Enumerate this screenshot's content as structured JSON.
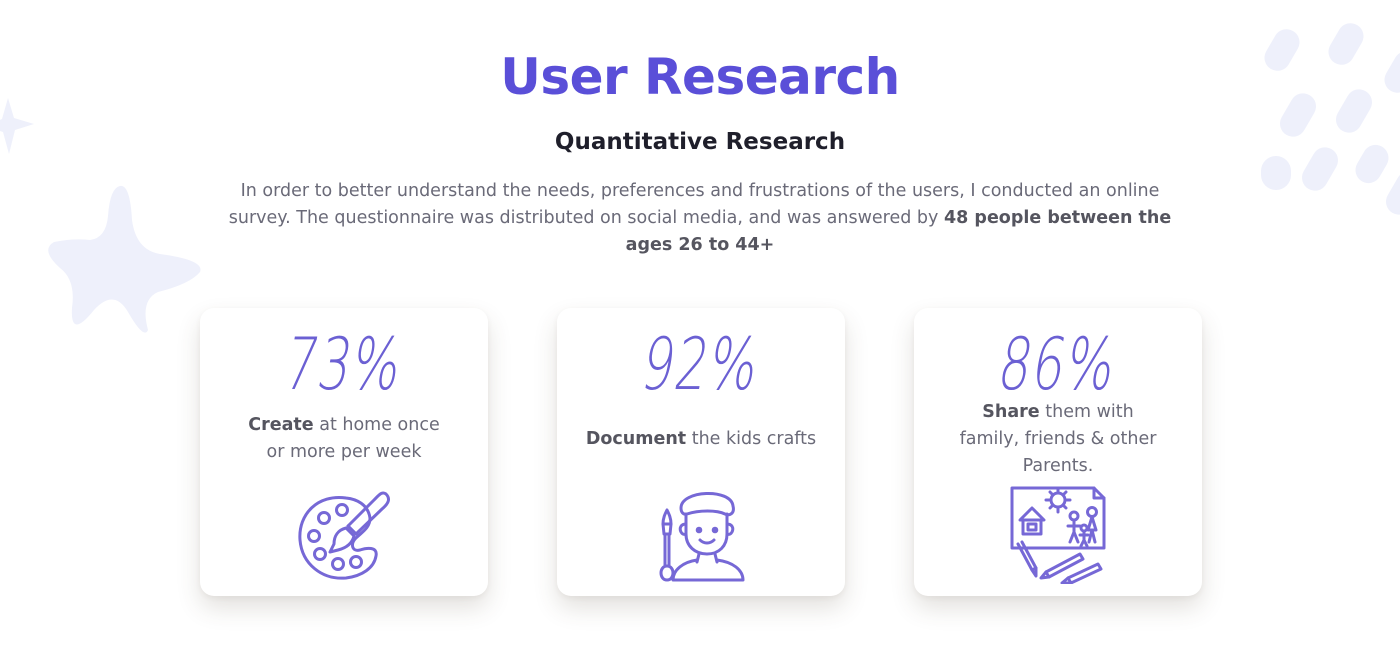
{
  "theme": {
    "accent": "#5a4fd8",
    "icon_stroke": "#7668d6",
    "decoration": "#eef0fb"
  },
  "header": {
    "title": "User Research",
    "subtitle": "Quantitative Research"
  },
  "intro": {
    "text": "In order to better understand the needs, preferences and frustrations of the users, I conducted an online survey. The questionnaire was distributed on social media, and was answered by ",
    "highlight": "48 people between the ages 26 to 44+"
  },
  "stats": [
    {
      "percent": "73%",
      "bold": "Create",
      "text": " at home once or more per week",
      "icon": "art-palette-icon"
    },
    {
      "percent": "92%",
      "bold": "Document",
      "text": " the kids crafts",
      "icon": "child-with-brush-icon"
    },
    {
      "percent": "86%",
      "bold": "Share",
      "text": " them with family, friends & other Parents.",
      "icon": "family-drawing-icon"
    }
  ]
}
